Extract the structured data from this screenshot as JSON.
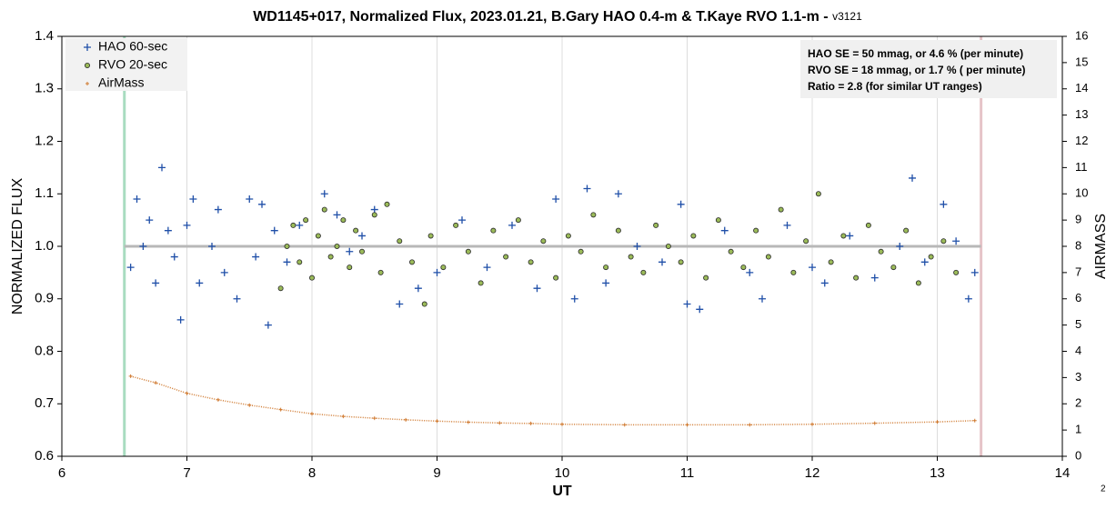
{
  "chart_data": {
    "type": "scatter",
    "title": "WD1145+017, Normalized Flux, 2023.01.21, B.Gary HAO 0.4-m & T.Kaye RVO 1.1-m - ",
    "version": "v3121",
    "xlabel": "UT",
    "ylabel": "NORMALIZED FLUX",
    "y2label": "AIRMASS",
    "xlim": [
      6,
      14
    ],
    "xticks": [
      6,
      7,
      8,
      9,
      10,
      11,
      12,
      13,
      14
    ],
    "ylim": [
      0.6,
      1.4
    ],
    "yticks": [
      0.6,
      0.7,
      0.8,
      0.9,
      {
        "value": 1,
        "label": "1.0"
      },
      1.1,
      1.2,
      1.3,
      1.4
    ],
    "y2lim": [
      0,
      16
    ],
    "y2ticks": [
      0,
      1,
      2,
      3,
      4,
      5,
      6,
      7,
      8,
      9,
      10,
      11,
      12,
      13,
      14,
      15,
      16
    ],
    "grid": true,
    "legend": "upper left",
    "reference_lines": {
      "vertical": [
        {
          "value": 6.5,
          "color": "#a8dcc0"
        },
        {
          "value": 13.35,
          "color": "#e6c4c8"
        }
      ],
      "horizontal": {
        "value": 1,
        "color": "#b8b8b8"
      }
    },
    "annotation": [
      "HAO SE =   50 mmag, or 4.6 % (per minute)",
      "RVO SE =   18 mmag, or 1.7 % ( per minute)",
      "Ratio = 2.8 (for similar UT ranges)"
    ],
    "page_number": "2",
    "series": [
      {
        "name": "HAO 60-sec",
        "color": "#1f4fa8",
        "marker": "plus",
        "x": [
          6.55,
          6.6,
          6.65,
          6.7,
          6.75,
          6.8,
          6.85,
          6.9,
          6.95,
          7.0,
          7.05,
          7.1,
          7.2,
          7.25,
          7.3,
          7.4,
          7.5,
          7.55,
          7.6,
          7.65,
          7.7,
          7.8,
          7.9,
          8.1,
          8.2,
          8.3,
          8.4,
          8.5,
          8.7,
          8.85,
          9.0,
          9.2,
          9.4,
          9.6,
          9.8,
          9.95,
          10.1,
          10.2,
          10.35,
          10.45,
          10.6,
          10.8,
          10.95,
          11.0,
          11.1,
          11.3,
          11.5,
          11.6,
          11.8,
          12.0,
          12.1,
          12.3,
          12.5,
          12.7,
          12.8,
          12.9,
          13.05,
          13.15,
          13.25,
          13.3
        ],
        "values": [
          0.96,
          1.09,
          1.0,
          1.05,
          0.93,
          1.15,
          1.03,
          0.98,
          0.86,
          1.04,
          1.09,
          0.93,
          1.0,
          1.07,
          0.95,
          0.9,
          1.09,
          0.98,
          1.08,
          0.85,
          1.03,
          0.97,
          1.04,
          1.1,
          1.06,
          0.99,
          1.02,
          1.07,
          0.89,
          0.92,
          0.95,
          1.05,
          0.96,
          1.04,
          0.92,
          1.09,
          0.9,
          1.11,
          0.93,
          1.1,
          1.0,
          0.97,
          1.08,
          0.89,
          0.88,
          1.03,
          0.95,
          0.9,
          1.04,
          0.96,
          0.93,
          1.02,
          0.94,
          1.0,
          1.13,
          0.97,
          1.08,
          1.01,
          0.9,
          0.95
        ]
      },
      {
        "name": "RVO 20-sec",
        "color": "#9bbb59",
        "marker": "circle",
        "x": [
          7.75,
          7.8,
          7.85,
          7.9,
          7.95,
          8.0,
          8.05,
          8.1,
          8.15,
          8.2,
          8.25,
          8.3,
          8.35,
          8.4,
          8.5,
          8.55,
          8.6,
          8.7,
          8.8,
          8.9,
          8.95,
          9.05,
          9.15,
          9.25,
          9.35,
          9.45,
          9.55,
          9.65,
          9.75,
          9.85,
          9.95,
          10.05,
          10.15,
          10.25,
          10.35,
          10.45,
          10.55,
          10.65,
          10.75,
          10.85,
          10.95,
          11.05,
          11.15,
          11.25,
          11.35,
          11.45,
          11.55,
          11.65,
          11.75,
          11.85,
          11.95,
          12.05,
          12.15,
          12.25,
          12.35,
          12.45,
          12.55,
          12.65,
          12.75,
          12.85,
          12.95,
          13.05,
          13.15
        ],
        "values": [
          0.92,
          1.0,
          1.04,
          0.97,
          1.05,
          0.94,
          1.02,
          1.07,
          0.98,
          1.0,
          1.05,
          0.96,
          1.03,
          0.99,
          1.06,
          0.95,
          1.08,
          1.01,
          0.97,
          0.89,
          1.02,
          0.96,
          1.04,
          0.99,
          0.93,
          1.03,
          0.98,
          1.05,
          0.97,
          1.01,
          0.94,
          1.02,
          0.99,
          1.06,
          0.96,
          1.03,
          0.98,
          0.95,
          1.04,
          1.0,
          0.97,
          1.02,
          0.94,
          1.05,
          0.99,
          0.96,
          1.03,
          0.98,
          1.07,
          0.95,
          1.01,
          1.1,
          0.97,
          1.02,
          0.94,
          1.04,
          0.99,
          0.96,
          1.03,
          0.93,
          0.98,
          1.01,
          0.95
        ]
      },
      {
        "name": "AirMass",
        "color": "#d07a30",
        "marker": "tick",
        "axis": "y2",
        "x": [
          6.55,
          6.75,
          7.0,
          7.25,
          7.5,
          7.75,
          8.0,
          8.25,
          8.5,
          8.75,
          9.0,
          9.25,
          9.5,
          9.75,
          10.0,
          10.5,
          11.0,
          11.5,
          12.0,
          12.5,
          13.0,
          13.3
        ],
        "values": [
          3.05,
          2.8,
          2.4,
          2.15,
          1.95,
          1.78,
          1.62,
          1.52,
          1.45,
          1.39,
          1.34,
          1.3,
          1.27,
          1.25,
          1.22,
          1.2,
          1.2,
          1.2,
          1.22,
          1.26,
          1.31,
          1.36
        ]
      }
    ]
  }
}
